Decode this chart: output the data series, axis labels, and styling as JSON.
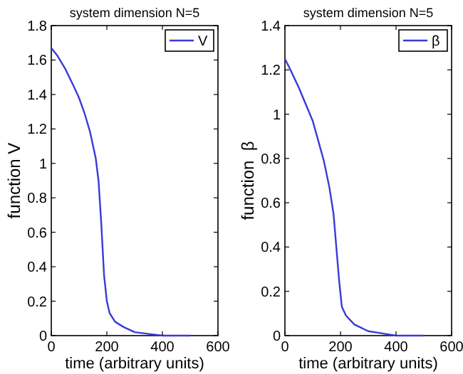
{
  "chart_data": [
    {
      "type": "line",
      "title": "system dimension N=5",
      "xlabel": "time (arbitrary units)",
      "ylabel": "function V",
      "x": [
        0,
        20,
        50,
        80,
        100,
        120,
        140,
        160,
        170,
        180,
        190,
        200,
        210,
        230,
        260,
        300,
        350,
        400,
        450,
        500
      ],
      "series": [
        {
          "name": "V",
          "color": "#3a3ad8",
          "values": [
            1.67,
            1.63,
            1.55,
            1.45,
            1.38,
            1.29,
            1.18,
            1.03,
            0.9,
            0.65,
            0.35,
            0.2,
            0.13,
            0.08,
            0.05,
            0.02,
            0.01,
            0,
            0,
            0
          ]
        }
      ],
      "xlim": [
        0,
        600
      ],
      "xticks": [
        0,
        200,
        400,
        600
      ],
      "ylim": [
        0,
        1.8
      ],
      "yticks": [
        0,
        0.2,
        0.4,
        0.6,
        0.8,
        1,
        1.2,
        1.4,
        1.6,
        1.8
      ],
      "legend": "top right",
      "grid": false
    },
    {
      "type": "line",
      "title": "system dimension N=5",
      "xlabel": "time (arbitrary units)",
      "ylabel": "function  β",
      "x": [
        0,
        20,
        50,
        80,
        100,
        120,
        140,
        160,
        175,
        185,
        195,
        205,
        220,
        250,
        300,
        350,
        400,
        500
      ],
      "series": [
        {
          "name": "β",
          "color": "#3a3ad8",
          "values": [
            1.25,
            1.2,
            1.12,
            1.03,
            0.97,
            0.88,
            0.79,
            0.67,
            0.55,
            0.4,
            0.25,
            0.13,
            0.09,
            0.05,
            0.02,
            0.01,
            0,
            0
          ]
        }
      ],
      "xlim": [
        0,
        600
      ],
      "xticks": [
        0,
        200,
        400,
        600
      ],
      "ylim": [
        0,
        1.4
      ],
      "yticks": [
        0,
        0.2,
        0.4,
        0.6,
        0.8,
        1,
        1.2,
        1.4
      ],
      "legend": "top right",
      "grid": false
    }
  ]
}
